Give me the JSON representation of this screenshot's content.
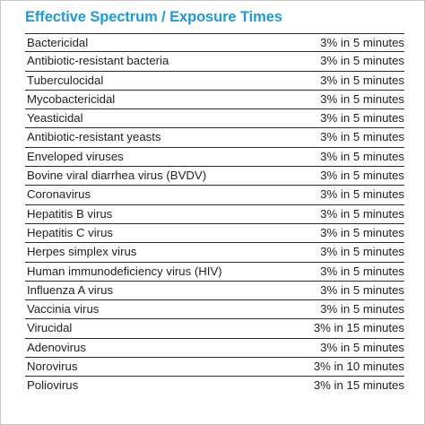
{
  "title": "Effective Spectrum / Exposure Times",
  "rows": [
    {
      "organism": "Bactericidal",
      "time": "3% in 5 minutes"
    },
    {
      "organism": "Antibiotic-resistant bacteria",
      "time": "3% in 5 minutes"
    },
    {
      "organism": "Tuberculocidal",
      "time": "3% in 5 minutes"
    },
    {
      "organism": "Mycobactericidal",
      "time": "3% in 5 minutes"
    },
    {
      "organism": "Yeasticidal",
      "time": "3% in 5 minutes"
    },
    {
      "organism": "Antibiotic-resistant yeasts",
      "time": "3% in 5 minutes"
    },
    {
      "organism": "Enveloped viruses",
      "time": "3% in 5 minutes"
    },
    {
      "organism": "Bovine viral diarrhea virus (BVDV)",
      "time": "3% in 5 minutes"
    },
    {
      "organism": "Coronavirus",
      "time": "3% in 5 minutes"
    },
    {
      "organism": "Hepatitis B virus",
      "time": "3% in 5 minutes"
    },
    {
      "organism": "Hepatitis C virus",
      "time": "3% in 5 minutes"
    },
    {
      "organism": "Herpes simplex virus",
      "time": "3% in 5 minutes"
    },
    {
      "organism": "Human immunodeficiency virus (HIV)",
      "time": "3% in 5 minutes"
    },
    {
      "organism": "Influenza A virus",
      "time": "3% in 5 minutes"
    },
    {
      "organism": "Vaccinia virus",
      "time": "3% in 5 minutes"
    },
    {
      "organism": "Virucidal",
      "time": "3% in 15 minutes"
    },
    {
      "organism": "Adenovirus",
      "time": "3% in 5 minutes"
    },
    {
      "organism": "Norovirus",
      "time": "3% in 10 minutes"
    },
    {
      "organism": "Poliovirus",
      "time": "3% in 15 minutes"
    }
  ]
}
